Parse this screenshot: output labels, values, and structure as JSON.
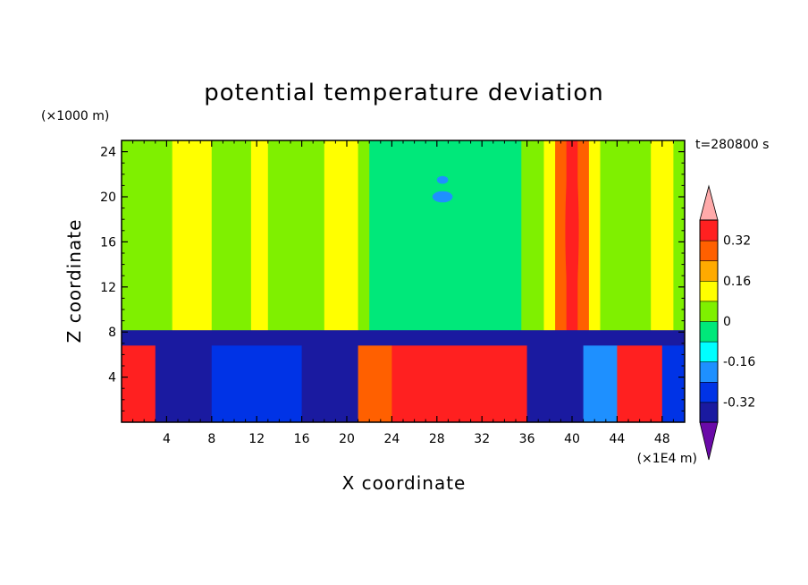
{
  "chart_data": {
    "type": "heatmap",
    "title": "potential temperature deviation",
    "xlabel": "X coordinate",
    "ylabel": "Z coordinate",
    "x_unit": "(×1E4 m)",
    "y_unit": "(×1000 m)",
    "time_label": "t=280800 s",
    "xlim": [
      0,
      50
    ],
    "ylim": [
      0,
      25
    ],
    "x_ticks": [
      "4",
      "8",
      "12",
      "16",
      "20",
      "24",
      "28",
      "32",
      "36",
      "40",
      "44",
      "48"
    ],
    "x_tick_values": [
      4,
      8,
      12,
      16,
      20,
      24,
      28,
      32,
      36,
      40,
      44,
      48
    ],
    "y_ticks": [
      "4",
      "8",
      "12",
      "16",
      "20",
      "24"
    ],
    "y_tick_values": [
      4,
      8,
      12,
      16,
      20,
      24
    ],
    "colorbar": {
      "levels": [
        -0.4,
        -0.32,
        -0.24,
        -0.16,
        -0.08,
        0,
        0.08,
        0.16,
        0.24,
        0.32,
        0.4
      ],
      "colors": [
        "#6a0aa8",
        "#1a1aa0",
        "#0033e6",
        "#1e90ff",
        "#00ffff",
        "#00e87a",
        "#7ff000",
        "#ffff00",
        "#ffaa00",
        "#ff6000",
        "#ff2020",
        "#ffaaaa"
      ],
      "labels": [
        "0.32",
        "0.16",
        "0",
        "-0.16",
        "-0.32"
      ],
      "label_values": [
        0.32,
        0.16,
        0,
        -0.16,
        -0.32
      ]
    },
    "upper_columns": [
      {
        "x0": 0,
        "x1": 4.5,
        "value": 0.04
      },
      {
        "x0": 4.5,
        "x1": 8,
        "value": 0.13
      },
      {
        "x0": 8,
        "x1": 11.5,
        "value": 0.05
      },
      {
        "x0": 11.5,
        "x1": 13,
        "value": 0.12
      },
      {
        "x0": 13,
        "x1": 18,
        "value": 0.05
      },
      {
        "x0": 18,
        "x1": 21,
        "value": 0.14
      },
      {
        "x0": 21,
        "x1": 22,
        "value": 0.04
      },
      {
        "x0": 22,
        "x1": 35.5,
        "value": -0.06
      },
      {
        "x0": 35.5,
        "x1": 37.5,
        "value": 0.02
      },
      {
        "x0": 37.5,
        "x1": 38.5,
        "value": 0.1
      },
      {
        "x0": 38.5,
        "x1": 39.5,
        "value": 0.3
      },
      {
        "x0": 39.5,
        "x1": 40.5,
        "value": 0.36
      },
      {
        "x0": 40.5,
        "x1": 41.5,
        "value": 0.3
      },
      {
        "x0": 41.5,
        "x1": 42.5,
        "value": 0.1
      },
      {
        "x0": 42.5,
        "x1": 47,
        "value": 0.03
      },
      {
        "x0": 47,
        "x1": 49,
        "value": 0.14
      },
      {
        "x0": 49,
        "x1": 50,
        "value": 0.04
      }
    ],
    "lower_segments": [
      {
        "x0": 0,
        "x1": 3,
        "value": 0.38
      },
      {
        "x0": 3,
        "x1": 8,
        "value": -0.36
      },
      {
        "x0": 8,
        "x1": 16,
        "value": -0.3
      },
      {
        "x0": 16,
        "x1": 21,
        "value": -0.38
      },
      {
        "x0": 21,
        "x1": 24,
        "value": 0.3
      },
      {
        "x0": 24,
        "x1": 36,
        "value": 0.38
      },
      {
        "x0": 36,
        "x1": 41,
        "value": -0.38
      },
      {
        "x0": 41,
        "x1": 44,
        "value": -0.2
      },
      {
        "x0": 44,
        "x1": 48,
        "value": 0.38
      },
      {
        "x0": 48,
        "x1": 50,
        "value": -0.3
      }
    ],
    "boundary_z": 8,
    "boundary_value": -0.4,
    "blobs": [
      {
        "x": 28.5,
        "z": 21.5,
        "rx": 0.5,
        "rz": 0.35,
        "value": -0.2
      },
      {
        "x": 28.5,
        "z": 20.0,
        "rx": 0.9,
        "rz": 0.5,
        "value": -0.2
      },
      {
        "x": 40,
        "z": 17,
        "rx": 0.6,
        "rz": 7.5,
        "value": 0.38
      }
    ]
  }
}
